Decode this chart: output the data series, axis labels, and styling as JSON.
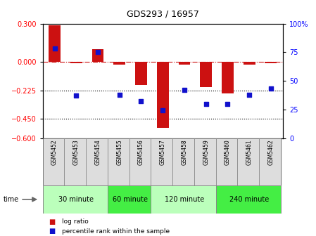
{
  "title": "GDS293 / 16957",
  "samples": [
    "GSM5452",
    "GSM5453",
    "GSM5454",
    "GSM5455",
    "GSM5456",
    "GSM5457",
    "GSM5458",
    "GSM5459",
    "GSM5460",
    "GSM5461",
    "GSM5462"
  ],
  "log_ratio": [
    0.285,
    -0.01,
    0.1,
    -0.02,
    -0.18,
    -0.52,
    -0.02,
    -0.2,
    -0.25,
    -0.02,
    -0.01
  ],
  "percentile": [
    78,
    37,
    75,
    38,
    32,
    24,
    42,
    30,
    30,
    38,
    43
  ],
  "ylim_left": [
    -0.6,
    0.3
  ],
  "ylim_right": [
    0,
    100
  ],
  "yticks_left": [
    0.3,
    0,
    -0.225,
    -0.45,
    -0.6
  ],
  "yticks_right": [
    100,
    75,
    50,
    25,
    0
  ],
  "hlines": [
    -0.225,
    -0.45
  ],
  "dashed_hline": 0.0,
  "bar_color": "#cc1111",
  "dot_color": "#1111cc",
  "groups": [
    {
      "label": "30 minute",
      "start": 0,
      "end": 2,
      "color": "#bbffbb"
    },
    {
      "label": "60 minute",
      "start": 3,
      "end": 4,
      "color": "#44ee44"
    },
    {
      "label": "120 minute",
      "start": 5,
      "end": 7,
      "color": "#bbffbb"
    },
    {
      "label": "240 minute",
      "start": 8,
      "end": 10,
      "color": "#44ee44"
    }
  ],
  "time_label": "time",
  "legend_bar_label": "log ratio",
  "legend_dot_label": "percentile rank within the sample",
  "bg_color": "#ffffff",
  "sample_box_color": "#dddddd",
  "title_fontsize": 9,
  "axis_fontsize": 7,
  "sample_fontsize": 5.5,
  "group_fontsize": 7,
  "legend_fontsize": 6.5
}
